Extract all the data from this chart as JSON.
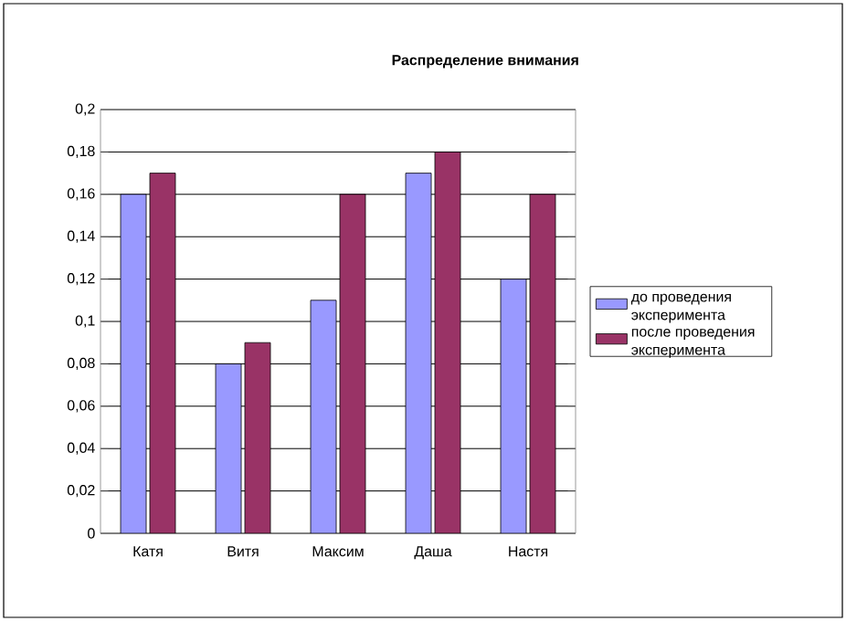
{
  "chart_data": {
    "type": "bar",
    "title": "Распределение внимания",
    "categories": [
      "Катя",
      "Витя",
      "Максим",
      "Даша",
      "Настя"
    ],
    "series": [
      {
        "name": "до проведения эксперимента",
        "color": "#9999ff",
        "values": [
          0.16,
          0.08,
          0.11,
          0.17,
          0.12
        ]
      },
      {
        "name": "после проведения эксперимента",
        "color": "#993366",
        "values": [
          0.17,
          0.09,
          0.16,
          0.18,
          0.16
        ]
      }
    ],
    "ylim": [
      0,
      0.2
    ],
    "yticks": [
      {
        "value": 0,
        "label": "0"
      },
      {
        "value": 0.02,
        "label": "0,02"
      },
      {
        "value": 0.04,
        "label": "0,04"
      },
      {
        "value": 0.06,
        "label": "0,06"
      },
      {
        "value": 0.08,
        "label": "0,08"
      },
      {
        "value": 0.1,
        "label": "0,1"
      },
      {
        "value": 0.12,
        "label": "0,12"
      },
      {
        "value": 0.14,
        "label": "0,14"
      },
      {
        "value": 0.16,
        "label": "0,16"
      },
      {
        "value": 0.18,
        "label": "0,18"
      },
      {
        "value": 0.2,
        "label": "0,2"
      }
    ],
    "grid": "y",
    "legend": "right"
  }
}
